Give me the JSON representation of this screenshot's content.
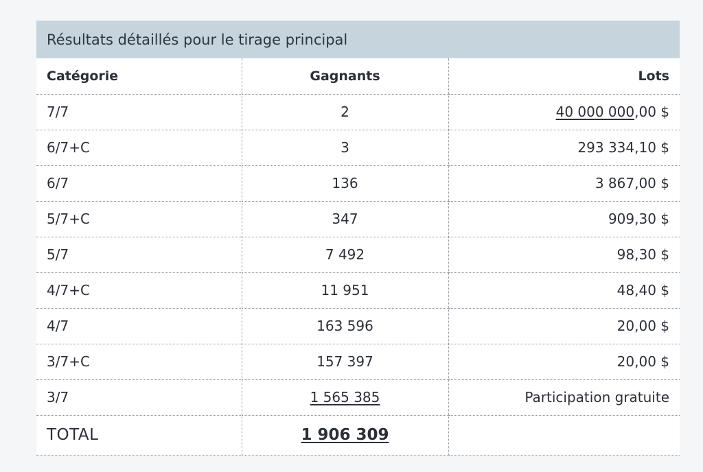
{
  "table": {
    "caption": "Résultats détaillés pour le tirage principal",
    "headers": [
      "Catégorie",
      "Gagnants",
      "Lots"
    ],
    "rows": [
      {
        "category": "7/7",
        "winners": "2",
        "prize_link": "40 000 000",
        "prize_rest": ",00 $",
        "prize": "40 000 000,00 $"
      },
      {
        "category": "6/7+C",
        "winners": "3",
        "prize": "293 334,10 $"
      },
      {
        "category": "6/7",
        "winners": "136",
        "prize": "3 867,00 $"
      },
      {
        "category": "5/7+C",
        "winners": "347",
        "prize": "909,30 $"
      },
      {
        "category": "5/7",
        "winners": "7 492",
        "prize": "98,30 $"
      },
      {
        "category": "4/7+C",
        "winners": "11 951",
        "prize": "48,40 $"
      },
      {
        "category": "4/7",
        "winners": "163 596",
        "prize": "20,00 $"
      },
      {
        "category": "3/7+C",
        "winners": "157 397",
        "prize": "20,00 $"
      },
      {
        "category": "3/7",
        "winners": "1 565 385",
        "prize": "Participation gratuite"
      }
    ],
    "total": {
      "label": "TOTAL",
      "winners": "1 906 309",
      "prize": ""
    }
  }
}
